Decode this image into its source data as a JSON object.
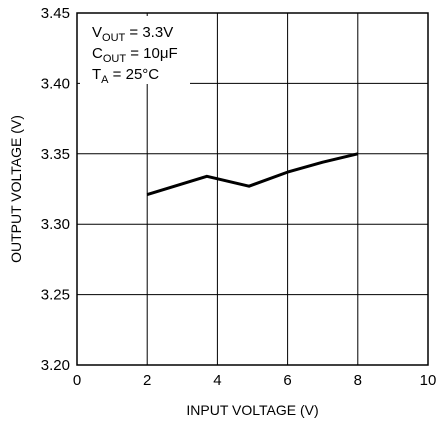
{
  "chart_data": {
    "type": "line",
    "xlabel": "INPUT VOLTAGE (V)",
    "ylabel": "OUTPUT VOLTAGE (V)",
    "xlim": [
      0,
      10
    ],
    "ylim": [
      3.2,
      3.45
    ],
    "x_ticks": [
      "0",
      "2",
      "4",
      "6",
      "8",
      "10"
    ],
    "y_ticks": [
      "3.20",
      "3.25",
      "3.30",
      "3.35",
      "3.40",
      "3.45"
    ],
    "grid": true,
    "series": [
      {
        "x": [
          2.0,
          3.7,
          4.9,
          6.0,
          7.0,
          8.0
        ],
        "y": [
          3.321,
          3.334,
          3.327,
          3.337,
          3.344,
          3.35
        ]
      }
    ],
    "annotations": [
      {
        "main": "V",
        "sub": "OUT",
        "rest": " = 3.3V"
      },
      {
        "main": "C",
        "sub": "OUT",
        "rest": " = 10μF"
      },
      {
        "main": "T",
        "sub": "A",
        "rest": " = 25°C"
      }
    ],
    "colors": {
      "line": "#000000",
      "grid": "#000000",
      "background": "#ffffff"
    }
  }
}
